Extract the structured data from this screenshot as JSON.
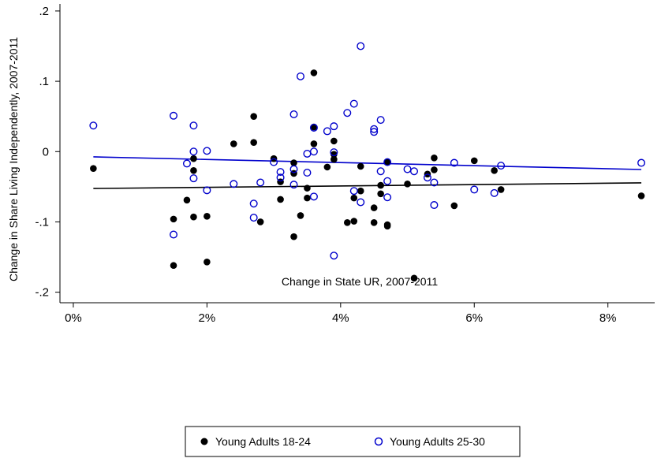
{
  "chart_data": {
    "type": "scatter",
    "xlabel": "Change in State UR, 2007-2011",
    "ylabel": "Change in Share Living Independently, 2007-2011",
    "xlim": [
      -0.002,
      0.087
    ],
    "ylim": [
      -0.215,
      0.21
    ],
    "x_ticks": [
      {
        "value": 0.0,
        "label": "0%"
      },
      {
        "value": 0.02,
        "label": "2%"
      },
      {
        "value": 0.04,
        "label": "4%"
      },
      {
        "value": 0.06,
        "label": "6%"
      },
      {
        "value": 0.08,
        "label": "8%"
      }
    ],
    "y_ticks": [
      {
        "value": -0.2,
        "label": "-.2"
      },
      {
        "value": -0.1,
        "label": "-.1"
      },
      {
        "value": 0.0,
        "label": "0"
      },
      {
        "value": 0.1,
        "label": ".1"
      },
      {
        "value": 0.2,
        "label": ".2"
      }
    ],
    "grid": false,
    "legend_position": "bottom",
    "series": [
      {
        "name": "Young Adults 18-24",
        "marker": "filled-circle",
        "color": "#000000",
        "points": [
          [
            0.003,
            -0.024
          ],
          [
            0.015,
            -0.096
          ],
          [
            0.015,
            -0.162
          ],
          [
            0.017,
            -0.069
          ],
          [
            0.018,
            -0.027
          ],
          [
            0.018,
            -0.01
          ],
          [
            0.018,
            -0.093
          ],
          [
            0.02,
            -0.092
          ],
          [
            0.02,
            -0.157
          ],
          [
            0.024,
            0.011
          ],
          [
            0.027,
            0.05
          ],
          [
            0.027,
            0.013
          ],
          [
            0.028,
            -0.1
          ],
          [
            0.03,
            -0.01
          ],
          [
            0.031,
            -0.043
          ],
          [
            0.031,
            -0.068
          ],
          [
            0.033,
            -0.016
          ],
          [
            0.033,
            -0.031
          ],
          [
            0.033,
            -0.121
          ],
          [
            0.034,
            -0.091
          ],
          [
            0.035,
            -0.052
          ],
          [
            0.035,
            -0.066
          ],
          [
            0.036,
            0.011
          ],
          [
            0.036,
            0.035
          ],
          [
            0.036,
            0.112
          ],
          [
            0.038,
            -0.022
          ],
          [
            0.039,
            0.015
          ],
          [
            0.039,
            -0.011
          ],
          [
            0.039,
            -0.004
          ],
          [
            0.041,
            -0.101
          ],
          [
            0.042,
            -0.099
          ],
          [
            0.042,
            -0.066
          ],
          [
            0.043,
            -0.056
          ],
          [
            0.043,
            -0.021
          ],
          [
            0.045,
            -0.08
          ],
          [
            0.045,
            -0.101
          ],
          [
            0.046,
            -0.048
          ],
          [
            0.046,
            -0.06
          ],
          [
            0.047,
            -0.104
          ],
          [
            0.047,
            -0.106
          ],
          [
            0.047,
            -0.015
          ],
          [
            0.05,
            -0.046
          ],
          [
            0.051,
            -0.18
          ],
          [
            0.053,
            -0.032
          ],
          [
            0.054,
            -0.026
          ],
          [
            0.054,
            -0.009
          ],
          [
            0.057,
            -0.077
          ],
          [
            0.06,
            -0.013
          ],
          [
            0.063,
            -0.027
          ],
          [
            0.064,
            -0.054
          ],
          [
            0.085,
            -0.063
          ]
        ],
        "fit": {
          "x": [
            0.003,
            0.085
          ],
          "y": [
            -0.0525,
            -0.0445
          ]
        }
      },
      {
        "name": "Young Adults 25-30",
        "marker": "hollow-circle",
        "color": "#0000cc",
        "points": [
          [
            0.003,
            0.037
          ],
          [
            0.015,
            0.051
          ],
          [
            0.015,
            -0.118
          ],
          [
            0.017,
            -0.017
          ],
          [
            0.018,
            0.037
          ],
          [
            0.018,
            0.0
          ],
          [
            0.018,
            -0.038
          ],
          [
            0.02,
            0.001
          ],
          [
            0.02,
            -0.055
          ],
          [
            0.024,
            -0.046
          ],
          [
            0.027,
            -0.074
          ],
          [
            0.027,
            -0.094
          ],
          [
            0.028,
            -0.044
          ],
          [
            0.03,
            -0.015
          ],
          [
            0.031,
            -0.029
          ],
          [
            0.031,
            -0.037
          ],
          [
            0.033,
            0.053
          ],
          [
            0.033,
            -0.025
          ],
          [
            0.033,
            -0.047
          ],
          [
            0.034,
            0.107
          ],
          [
            0.035,
            -0.003
          ],
          [
            0.035,
            -0.03
          ],
          [
            0.036,
            0.034
          ],
          [
            0.036,
            0.0
          ],
          [
            0.036,
            -0.064
          ],
          [
            0.038,
            0.029
          ],
          [
            0.039,
            0.036
          ],
          [
            0.039,
            -0.001
          ],
          [
            0.039,
            -0.148
          ],
          [
            0.041,
            0.055
          ],
          [
            0.042,
            0.068
          ],
          [
            0.042,
            -0.056
          ],
          [
            0.043,
            0.15
          ],
          [
            0.043,
            -0.072
          ],
          [
            0.045,
            0.032
          ],
          [
            0.045,
            0.028
          ],
          [
            0.046,
            0.045
          ],
          [
            0.046,
            -0.028
          ],
          [
            0.047,
            -0.042
          ],
          [
            0.047,
            -0.015
          ],
          [
            0.047,
            -0.065
          ],
          [
            0.05,
            -0.025
          ],
          [
            0.051,
            -0.028
          ],
          [
            0.053,
            -0.037
          ],
          [
            0.054,
            -0.044
          ],
          [
            0.054,
            -0.076
          ],
          [
            0.057,
            -0.016
          ],
          [
            0.06,
            -0.054
          ],
          [
            0.063,
            -0.059
          ],
          [
            0.064,
            -0.02
          ],
          [
            0.085,
            -0.016
          ]
        ],
        "fit": {
          "x": [
            0.003,
            0.085
          ],
          "y": [
            -0.0075,
            -0.0255
          ]
        }
      }
    ]
  }
}
